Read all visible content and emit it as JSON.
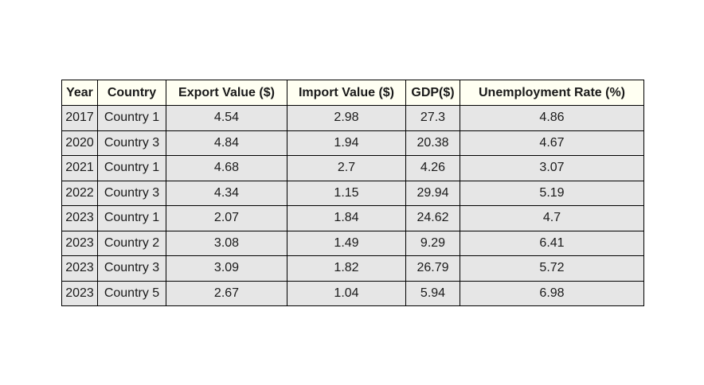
{
  "chart_data": {
    "type": "table",
    "columns": [
      "Year",
      "Country",
      "Export Value ($)",
      "Import Value ($)",
      "GDP($)",
      "Unemployment Rate (%)"
    ],
    "rows": [
      [
        "2017",
        "Country 1",
        "4.54",
        "2.98",
        "27.3",
        "4.86"
      ],
      [
        "2020",
        "Country 3",
        "4.84",
        "1.94",
        "20.38",
        "4.67"
      ],
      [
        "2021",
        "Country 1",
        "4.68",
        "2.7",
        "4.26",
        "3.07"
      ],
      [
        "2022",
        "Country 3",
        "4.34",
        "1.15",
        "29.94",
        "5.19"
      ],
      [
        "2023",
        "Country 1",
        "2.07",
        "1.84",
        "24.62",
        "4.7"
      ],
      [
        "2023",
        "Country 2",
        "3.08",
        "1.49",
        "9.29",
        "6.41"
      ],
      [
        "2023",
        "Country 3",
        "3.09",
        "1.82",
        "26.79",
        "5.72"
      ],
      [
        "2023",
        "Country 5",
        "2.67",
        "1.04",
        "5.94",
        "6.98"
      ]
    ],
    "header_background": "#fffff2",
    "cell_background": "#e6e6e6",
    "border_color": "#000000"
  }
}
